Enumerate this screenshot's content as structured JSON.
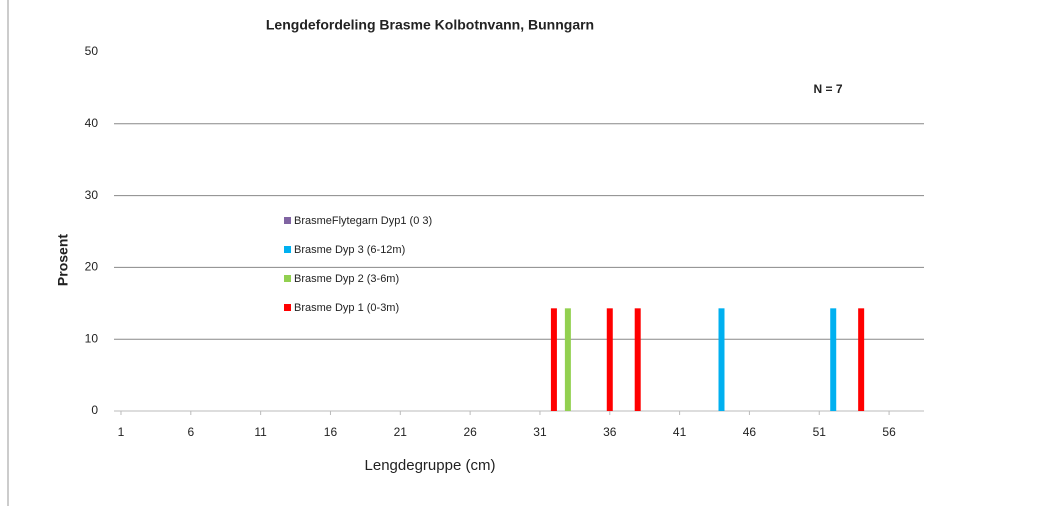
{
  "chart_data": {
    "type": "bar",
    "title": "Lengdefordeling Brasme Kolbotnvann, Bunngarn",
    "annotation": "N = 7",
    "xlabel": "Lengdegruppe  (cm)",
    "ylabel": "Prosent",
    "xlim": [
      0.5,
      58.5
    ],
    "xticks": [
      1,
      6,
      11,
      16,
      21,
      26,
      31,
      36,
      41,
      46,
      51,
      56
    ],
    "ylim": [
      0,
      50
    ],
    "yticks": [
      0,
      10,
      20,
      30,
      40,
      50
    ],
    "grid": true,
    "series": [
      {
        "name": "BrasmeFlytegarn Dyp1 (0 3)",
        "color": "#8064a2",
        "x": [],
        "values": []
      },
      {
        "name": "Brasme Dyp 3 (6-12m)",
        "color": "#00b0f0",
        "x": [
          44,
          52
        ],
        "values": [
          14.3,
          14.3
        ]
      },
      {
        "name": "Brasme Dyp 2 (3-6m)",
        "color": "#92d050",
        "x": [
          33
        ],
        "values": [
          14.3
        ]
      },
      {
        "name": "Brasme Dyp 1 (0-3m)",
        "color": "#ff0000",
        "x": [
          32,
          36,
          38,
          54
        ],
        "values": [
          14.3,
          14.3,
          14.3,
          14.3
        ]
      }
    ]
  }
}
